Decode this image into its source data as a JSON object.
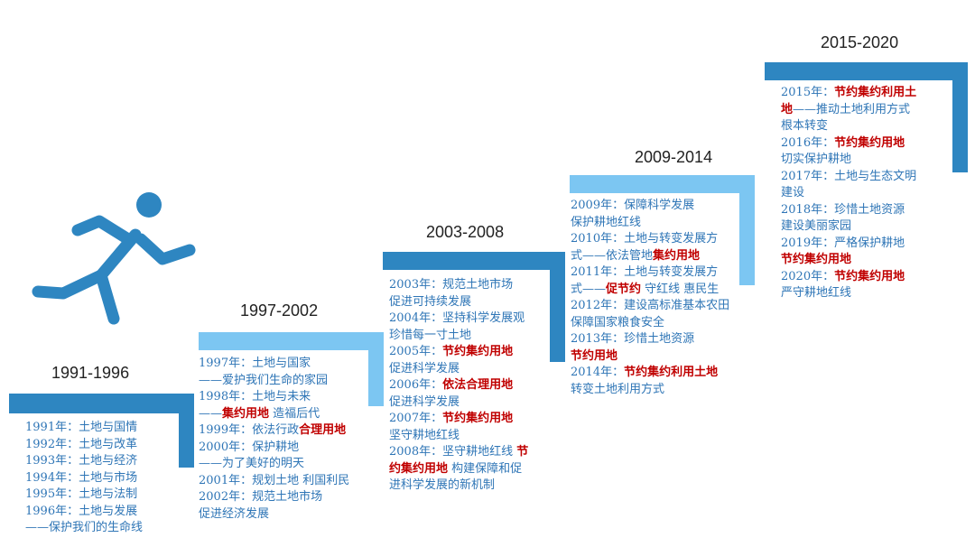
{
  "colors": {
    "dark_blue": "#2e86c1",
    "light_blue": "#7cc6f2",
    "text_blue": "#2e75b6",
    "highlight_red": "#c00000"
  },
  "icon": "running-person-icon",
  "periods": [
    {
      "label": "1991-1996",
      "lines": [
        [
          {
            "t": "1991年：土地与国情"
          }
        ],
        [
          {
            "t": "1992年：土地与改革"
          }
        ],
        [
          {
            "t": "1993年：土地与经济"
          }
        ],
        [
          {
            "t": "1994年：土地与市场"
          }
        ],
        [
          {
            "t": "1995年：土地与法制"
          }
        ],
        [
          {
            "t": "1996年：土地与发展"
          }
        ],
        [
          {
            "t": "——保护我们的生命线"
          }
        ]
      ]
    },
    {
      "label": "1997-2002",
      "lines": [
        [
          {
            "t": "1997年：土地与国家"
          }
        ],
        [
          {
            "t": "——爱护我们生命的家园"
          }
        ],
        [
          {
            "t": "1998年：土地与未来"
          }
        ],
        [
          {
            "t": "——"
          },
          {
            "t": "集约用地",
            "r": true
          },
          {
            "t": " 造福后代"
          }
        ],
        [
          {
            "t": "1999年：依法行政"
          },
          {
            "t": "合理用地",
            "r": true
          }
        ],
        [
          {
            "t": "2000年：保护耕地"
          }
        ],
        [
          {
            "t": "——为了美好的明天"
          }
        ],
        [
          {
            "t": "2001年：规划土地 利国利民"
          }
        ],
        [
          {
            "t": "2002年：规范土地市场"
          }
        ],
        [
          {
            "t": "促进经济发展"
          }
        ]
      ]
    },
    {
      "label": "2003-2008",
      "lines": [
        [
          {
            "t": "2003年：规范土地市场"
          }
        ],
        [
          {
            "t": "促进可持续发展"
          }
        ],
        [
          {
            "t": "2004年：坚持科学发展观"
          }
        ],
        [
          {
            "t": "珍惜每一寸土地"
          }
        ],
        [
          {
            "t": "2005年："
          },
          {
            "t": "节约集约用地",
            "r": true
          }
        ],
        [
          {
            "t": "促进科学发展"
          }
        ],
        [
          {
            "t": "2006年："
          },
          {
            "t": "依法合理用地",
            "r": true
          }
        ],
        [
          {
            "t": "促进科学发展"
          }
        ],
        [
          {
            "t": "2007年："
          },
          {
            "t": "节约集约用地",
            "r": true
          }
        ],
        [
          {
            "t": "坚守耕地红线"
          }
        ],
        [
          {
            "t": "2008年：坚守耕地红线 "
          },
          {
            "t": "节",
            "r": true
          }
        ],
        [
          {
            "t": "约集约用地",
            "r": true
          },
          {
            "t": " 构建保障和促"
          }
        ],
        [
          {
            "t": "进科学发展的新机制"
          }
        ]
      ]
    },
    {
      "label": "2009-2014",
      "lines": [
        [
          {
            "t": "2009年：保障科学发展"
          }
        ],
        [
          {
            "t": "保护耕地红线"
          }
        ],
        [
          {
            "t": "2010年：土地与转变发展方"
          }
        ],
        [
          {
            "t": "式——依法管地"
          },
          {
            "t": "集约用地",
            "r": true
          }
        ],
        [
          {
            "t": "2011年：土地与转变发展方"
          }
        ],
        [
          {
            "t": "式——"
          },
          {
            "t": "促节约",
            "r": true
          },
          {
            "t": " 守红线 惠民生"
          }
        ],
        [
          {
            "t": "2012年：建设高标准基本农田"
          }
        ],
        [
          {
            "t": "保障国家粮食安全"
          }
        ],
        [
          {
            "t": "2013年：珍惜土地资源"
          }
        ],
        [
          {
            "t": "节约用地",
            "r": true
          }
        ],
        [
          {
            "t": "2014年："
          },
          {
            "t": "节约集约利用土地",
            "r": true
          }
        ],
        [
          {
            "t": "转变土地利用方式"
          }
        ]
      ]
    },
    {
      "label": "2015-2020",
      "lines": [
        [
          {
            "t": "2015年："
          },
          {
            "t": "节约集约利用土",
            "r": true
          }
        ],
        [
          {
            "t": "地",
            "r": true
          },
          {
            "t": "——推动土地利用方式"
          }
        ],
        [
          {
            "t": "根本转变"
          }
        ],
        [
          {
            "t": "2016年："
          },
          {
            "t": "节约集约用地",
            "r": true
          }
        ],
        [
          {
            "t": "切实保护耕地"
          }
        ],
        [
          {
            "t": "2017年：土地与生态文明"
          }
        ],
        [
          {
            "t": "建设"
          }
        ],
        [
          {
            "t": "2018年：珍惜土地资源"
          }
        ],
        [
          {
            "t": "建设美丽家园"
          }
        ],
        [
          {
            "t": "2019年：严格保护耕地"
          }
        ],
        [
          {
            "t": "节约集约用地",
            "r": true
          }
        ],
        [
          {
            "t": "2020年："
          },
          {
            "t": "节约集约用地",
            "r": true
          }
        ],
        [
          {
            "t": " 严守耕地红线"
          }
        ]
      ]
    }
  ]
}
